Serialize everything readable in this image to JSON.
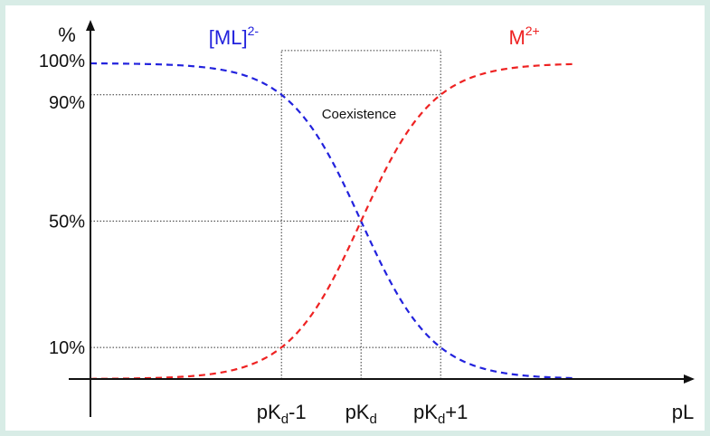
{
  "chart_data": {
    "type": "line",
    "title": "",
    "xlabel": "pL",
    "ylabel": "%",
    "x_ticks": [
      {
        "base": "pK",
        "sub": "d",
        "suffix": "-1"
      },
      {
        "base": "pK",
        "sub": "d",
        "suffix": ""
      },
      {
        "base": "pK",
        "sub": "d",
        "suffix": "+1"
      }
    ],
    "y_ticks": [
      "100%",
      "90%",
      "50%",
      "10%"
    ],
    "y_tick_values": [
      100,
      90,
      50,
      10
    ],
    "x_tick_values": [
      -1,
      0,
      1
    ],
    "xlim": [
      -3.4,
      4.1
    ],
    "ylim": [
      0,
      116
    ],
    "region_label": "Coexistence",
    "region": [
      -1,
      1
    ],
    "series": [
      {
        "name": "[ML]",
        "sup": "2-",
        "color": "#2222dd",
        "dash": true,
        "shape": "decreasing-sigmoid",
        "center": 0,
        "x_range": [
          -3.4,
          2.7
        ]
      },
      {
        "name": "M",
        "sup": "2+",
        "color": "#ee2222",
        "dash": true,
        "shape": "increasing-sigmoid",
        "center": 0,
        "x_range": [
          -3.4,
          2.7
        ]
      }
    ],
    "grid": false,
    "legend": "inline labels above curves"
  },
  "colors": {
    "frame": "#d8ece6",
    "axis": "#111111",
    "guide": "#333333"
  }
}
